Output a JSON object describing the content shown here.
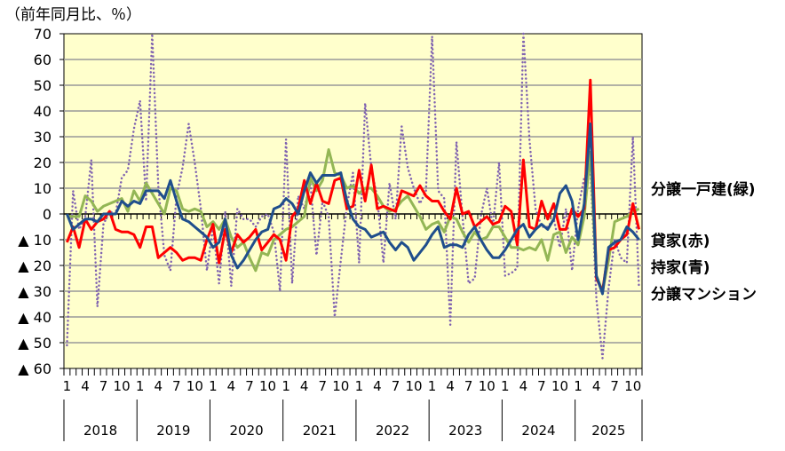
{
  "chart_data": {
    "type": "line",
    "title": "（前年同月比、％）",
    "ylim": [
      -60,
      70
    ],
    "y_ticks": [
      70,
      60,
      50,
      40,
      30,
      20,
      10,
      0,
      -10,
      -20,
      -30,
      -40,
      -50,
      -60
    ],
    "y_tick_labels": [
      "70",
      "60",
      "50",
      "40",
      "30",
      "20",
      "10",
      "0",
      "▲ 10",
      "▲ 20",
      "▲ 30",
      "▲ 40",
      "▲ 50",
      "▲ 60"
    ],
    "years": [
      "2018",
      "2019",
      "2020",
      "2021",
      "2022",
      "2023",
      "2024",
      "2025"
    ],
    "month_labels": [
      "1",
      "4",
      "7",
      "10"
    ],
    "start": "2018-01",
    "months_count": 95,
    "grid": true,
    "series": [
      {
        "name": "分譲マンション",
        "color": "#7F62B0",
        "style": "dotted",
        "values": [
          -51,
          9,
          -6,
          -1,
          21,
          -36,
          -4,
          1,
          0,
          14,
          17,
          33,
          44,
          5,
          70,
          11,
          -16,
          -22,
          7,
          18,
          35,
          20,
          2,
          -22,
          -5,
          -27,
          1,
          -28,
          2,
          -2,
          -2,
          -5,
          -1,
          0,
          -7,
          -30,
          29,
          -27,
          7,
          2,
          12,
          -16,
          5,
          -1,
          -40,
          -18,
          3,
          16,
          -19,
          43,
          18,
          6,
          -19,
          12,
          -2,
          34,
          18,
          10,
          4,
          9,
          69,
          9,
          6,
          -43,
          28,
          -1,
          -27,
          -25,
          -1,
          10,
          -5,
          20,
          -24,
          -23,
          -21,
          70,
          29,
          2,
          -5,
          -5,
          -2,
          -13,
          2,
          -22,
          2,
          14,
          18,
          -33,
          -56,
          -29,
          -10,
          -17,
          -19,
          30,
          -29
        ]
      },
      {
        "name": "分譲一戸建(緑)",
        "color": "#93B655",
        "style": "solid",
        "values": [
          -1,
          -1,
          -1,
          7,
          5,
          1,
          3,
          4,
          5,
          6,
          1,
          9,
          5,
          12,
          8,
          4,
          0,
          10,
          9,
          2,
          1,
          2,
          1,
          -5,
          -3,
          -6,
          -2,
          -9,
          -13,
          -11,
          -17,
          -22,
          -15,
          -16,
          -10,
          -8,
          -6,
          -5,
          -3,
          -1,
          14,
          9,
          13,
          25,
          16,
          15,
          10,
          11,
          8,
          10,
          10,
          7,
          3,
          1,
          2,
          5,
          7,
          3,
          -1,
          -6,
          -4,
          -3,
          -7,
          -1,
          -2,
          -7,
          -11,
          -7,
          -10,
          -9,
          -5,
          -5,
          -9,
          -13,
          -13,
          -14,
          -13,
          -14,
          -10,
          -18,
          -8,
          -7,
          -15,
          -9,
          -12,
          -1,
          24,
          -24,
          -30,
          -18,
          -3,
          -2,
          -1,
          1,
          2
        ]
      },
      {
        "name": "貸家(赤)",
        "color": "#FF0000",
        "style": "solid",
        "values": [
          -11,
          -5,
          -13,
          -2,
          -6,
          -3,
          -2,
          1,
          -6,
          -7,
          -7,
          -8,
          -13,
          -5,
          -5,
          -17,
          -15,
          -13,
          -15,
          -18,
          -17,
          -17,
          -18,
          -10,
          -4,
          -19,
          -6,
          -15,
          -8,
          -11,
          -9,
          -6,
          -14,
          -11,
          -8,
          -10,
          -18,
          -1,
          2,
          13,
          4,
          12,
          5,
          4,
          13,
          14,
          2,
          3,
          17,
          5,
          19,
          2,
          3,
          2,
          1,
          9,
          8,
          7,
          11,
          7,
          5,
          5,
          1,
          -2,
          10,
          0,
          1,
          -5,
          -3,
          -1,
          -4,
          -3,
          3,
          1,
          -12,
          21,
          -5,
          -6,
          5,
          -2,
          4,
          -6,
          -6,
          2,
          -1,
          2,
          52,
          -25,
          -30,
          -14,
          -13,
          -10,
          -8,
          4,
          -6
        ]
      },
      {
        "name": "持家(青)",
        "color": "#1F4E8C",
        "style": "solid",
        "values": [
          0,
          -6,
          -4,
          -2,
          -2,
          -3,
          0,
          0,
          0,
          5,
          3,
          5,
          4,
          9,
          9,
          9,
          6,
          13,
          5,
          -2,
          -3,
          -5,
          -7,
          -9,
          -13,
          -11,
          -2,
          -16,
          -21,
          -18,
          -14,
          -10,
          -7,
          -6,
          2,
          3,
          6,
          4,
          0,
          9,
          16,
          12,
          15,
          15,
          15,
          16,
          5,
          -2,
          -5,
          -6,
          -9,
          -8,
          -7,
          -11,
          -14,
          -11,
          -13,
          -18,
          -15,
          -12,
          -8,
          -5,
          -13,
          -12,
          -12,
          -13,
          -8,
          -5,
          -10,
          -14,
          -17,
          -17,
          -14,
          -10,
          -6,
          -4,
          -9,
          -6,
          -4,
          -6,
          -2,
          8,
          11,
          5,
          -10,
          4,
          35,
          -24,
          -31,
          -13,
          -11,
          -10,
          -5,
          -7,
          -10
        ]
      }
    ],
    "legend_labels": [
      "分譲一戸建(緑)",
      "貸家(赤)",
      "持家(青)",
      "分譲マンション"
    ]
  }
}
